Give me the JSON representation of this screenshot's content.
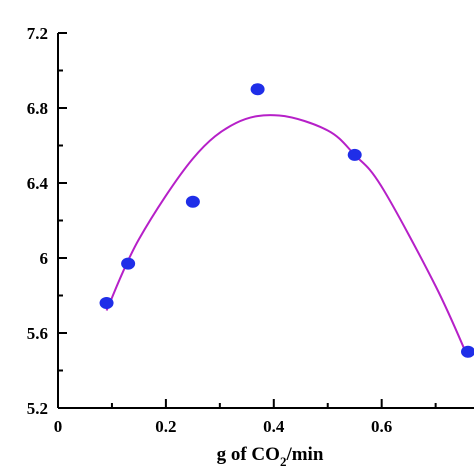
{
  "chart_data": {
    "type": "scatter",
    "title": "",
    "xlabel": {
      "prefix": "g of CO",
      "subscript": "2",
      "suffix": "/min"
    },
    "ylabel": "",
    "xlim": [
      0,
      0.76
    ],
    "ylim": [
      5.2,
      7.2
    ],
    "x_ticks": [
      {
        "value": 0,
        "label": "0"
      },
      {
        "value": 0.2,
        "label": "0.2"
      },
      {
        "value": 0.4,
        "label": "0.4"
      },
      {
        "value": 0.6,
        "label": "0.6"
      }
    ],
    "y_ticks": [
      {
        "value": 5.2,
        "label": "5.2"
      },
      {
        "value": 5.6,
        "label": "5.6"
      },
      {
        "value": 6.0,
        "label": "6"
      },
      {
        "value": 6.4,
        "label": "6.4"
      },
      {
        "value": 6.8,
        "label": "6.8"
      },
      {
        "value": 7.2,
        "label": "7.2"
      }
    ],
    "x_minor_step": 0.1,
    "y_minor_step": 0.2,
    "grid": false,
    "legend": "none",
    "series": [
      {
        "kind": "points",
        "color": "#1f2ee8",
        "x": [
          0.09,
          0.13,
          0.25,
          0.37,
          0.55,
          0.76
        ],
        "y": [
          5.76,
          5.97,
          6.3,
          6.9,
          6.55,
          5.5
        ]
      },
      {
        "kind": "fit-curve",
        "color": "#b620c8",
        "curve_points": [
          [
            0.09,
            5.72
          ],
          [
            0.15,
            6.1
          ],
          [
            0.25,
            6.53
          ],
          [
            0.33,
            6.72
          ],
          [
            0.41,
            6.76
          ],
          [
            0.5,
            6.68
          ],
          [
            0.55,
            6.55
          ],
          [
            0.6,
            6.38
          ],
          [
            0.7,
            5.85
          ],
          [
            0.76,
            5.47
          ]
        ]
      }
    ]
  }
}
